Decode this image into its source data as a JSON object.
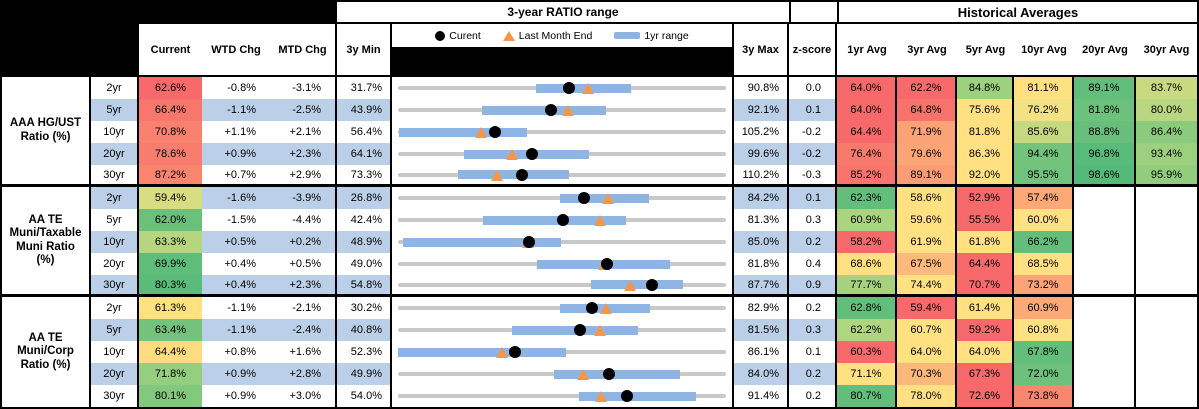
{
  "header": {
    "chart_range_title": "3-year RATIO range",
    "historical_title": "Historical Averages",
    "columns": {
      "current": "Current",
      "wtd": "WTD Chg",
      "mtd": "MTD Chg",
      "min": "3y Min",
      "max": "3y Max",
      "z": "z-score"
    },
    "avg_columns": [
      "1yr Avg",
      "3yr Avg",
      "5yr Avg",
      "10yr Avg",
      "20yr Avg",
      "30yr Avg"
    ],
    "legend": {
      "current": "Curent",
      "last_month_end": "Last Month End",
      "range": "1yr range"
    }
  },
  "colors": {
    "stripe": "#BBD0E8",
    "bar_1yr": "#8EB4E3",
    "track": "#C8C8C8",
    "triangle_orange": "#F79646",
    "dot_black": "#000000",
    "heat_red": "#F8696B",
    "heat_yellow": "#FFE182",
    "heat_green": "#63BE7B"
  },
  "chart_data": {
    "type": "table",
    "title": "3-year RATIO range",
    "legend": [
      "Curent",
      "Last Month End",
      "1yr range"
    ],
    "columns": [
      "Current",
      "WTD Chg",
      "MTD Chg",
      "3y Min",
      "3y Max",
      "z-score",
      "1yr Avg",
      "3yr Avg",
      "5yr Avg",
      "10yr Avg",
      "20yr Avg",
      "30yr Avg"
    ],
    "groups": [
      {
        "label": "AAA HG/UST Ratio (%)",
        "label_lines": "AAA HG/UST\nRatio (%)",
        "rows": [
          {
            "tenor": "2yr",
            "current": 62.6,
            "current_bg": "#F8696B",
            "wtd": "-0.8%",
            "mtd": "-3.1%",
            "min": 31.7,
            "max": 90.8,
            "z": "0.0",
            "range_1yr": [
              56.5,
              73.6
            ],
            "last_month_end": 65.9,
            "avgs": [
              {
                "v": 64.0,
                "bg": "#F8696B"
              },
              {
                "v": 62.2,
                "bg": "#F8696B"
              },
              {
                "v": 84.8,
                "bg": "#9ED17E"
              },
              {
                "v": 81.1,
                "bg": "#FFE182"
              },
              {
                "v": 89.1,
                "bg": "#63BE7B"
              },
              {
                "v": 83.7,
                "bg": "#C8DA80"
              }
            ]
          },
          {
            "tenor": "5yr",
            "current": 66.4,
            "current_bg": "#F8776D",
            "wtd": "-1.1%",
            "mtd": "-2.5%",
            "min": 43.9,
            "max": 92.1,
            "z": "0.1",
            "range_1yr": [
              56.3,
              74.4
            ],
            "last_month_end": 68.9,
            "avgs": [
              {
                "v": 64.0,
                "bg": "#F8696B"
              },
              {
                "v": 64.8,
                "bg": "#F8726C"
              },
              {
                "v": 75.6,
                "bg": "#FFE182"
              },
              {
                "v": 76.2,
                "bg": "#F2E284"
              },
              {
                "v": 81.8,
                "bg": "#6CC17C"
              },
              {
                "v": 80.0,
                "bg": "#B9D680"
              }
            ]
          },
          {
            "tenor": "10yr",
            "current": 70.8,
            "current_bg": "#F9816F",
            "wtd": "+1.1%",
            "mtd": "+2.1%",
            "min": 56.4,
            "max": 105.2,
            "z": "-0.2",
            "range_1yr": [
              56.5,
              75.6
            ],
            "last_month_end": 68.8,
            "avgs": [
              {
                "v": 64.4,
                "bg": "#F8696B"
              },
              {
                "v": 71.9,
                "bg": "#FBA376"
              },
              {
                "v": 81.8,
                "bg": "#FFE182"
              },
              {
                "v": 85.6,
                "bg": "#C6D981"
              },
              {
                "v": 88.8,
                "bg": "#68BF7B"
              },
              {
                "v": 86.4,
                "bg": "#8CCB7D"
              }
            ]
          },
          {
            "tenor": "20yr",
            "current": 78.6,
            "current_bg": "#F87D6E",
            "wtd": "+0.9%",
            "mtd": "+2.3%",
            "min": 64.1,
            "max": 99.6,
            "z": "-0.2",
            "range_1yr": [
              71.2,
              84.8
            ],
            "last_month_end": 76.4,
            "avgs": [
              {
                "v": 76.4,
                "bg": "#F87A6D"
              },
              {
                "v": 79.6,
                "bg": "#FBA476"
              },
              {
                "v": 86.3,
                "bg": "#FFE182"
              },
              {
                "v": 94.4,
                "bg": "#74C37C"
              },
              {
                "v": 96.8,
                "bg": "#58BB79"
              },
              {
                "v": 93.4,
                "bg": "#9DD07E"
              }
            ]
          },
          {
            "tenor": "30yr",
            "current": 87.2,
            "current_bg": "#F9856F",
            "wtd": "+0.7%",
            "mtd": "+2.9%",
            "min": 73.3,
            "max": 110.2,
            "z": "-0.3",
            "range_1yr": [
              80.0,
              92.5
            ],
            "last_month_end": 84.4,
            "avgs": [
              {
                "v": 85.2,
                "bg": "#F8746C"
              },
              {
                "v": 89.1,
                "bg": "#FB9D74"
              },
              {
                "v": 92.0,
                "bg": "#FFE182"
              },
              {
                "v": 95.5,
                "bg": "#70C27C"
              },
              {
                "v": 98.6,
                "bg": "#54BA79"
              },
              {
                "v": 95.9,
                "bg": "#92CD7E"
              }
            ]
          }
        ]
      },
      {
        "label": "AA TE Muni/Taxable Muni Ratio (%)",
        "label_lines": "AA TE\nMuni/Taxable\nMuni Ratio\n(%)",
        "rows": [
          {
            "tenor": "2yr",
            "current": 59.4,
            "current_bg": "#D9DD81",
            "wtd": "-1.6%",
            "mtd": "-3.9%",
            "min": 26.8,
            "max": 84.2,
            "z": "0.1",
            "range_1yr": [
              55.2,
              70.7
            ],
            "last_month_end": 63.5,
            "avgs": [
              {
                "v": 62.3,
                "bg": "#63BE7B"
              },
              {
                "v": 58.6,
                "bg": "#FFE182"
              },
              {
                "v": 52.9,
                "bg": "#F8696B"
              },
              {
                "v": 57.4,
                "bg": "#FCA977"
              },
              null,
              null
            ]
          },
          {
            "tenor": "5yr",
            "current": 62.0,
            "current_bg": "#6BC07C",
            "wtd": "-1.5%",
            "mtd": "-4.4%",
            "min": 42.4,
            "max": 81.3,
            "z": "0.3",
            "range_1yr": [
              52.5,
              69.5
            ],
            "last_month_end": 66.3,
            "avgs": [
              {
                "v": 60.9,
                "bg": "#ABD47F"
              },
              {
                "v": 59.6,
                "bg": "#FFE182"
              },
              {
                "v": 55.5,
                "bg": "#F8696B"
              },
              {
                "v": 60.0,
                "bg": "#FFE182"
              },
              null,
              null
            ]
          },
          {
            "tenor": "10yr",
            "current": 63.3,
            "current_bg": "#B5D67F",
            "wtd": "+0.5%",
            "mtd": "+0.2%",
            "min": 48.9,
            "max": 85.0,
            "z": "0.2",
            "range_1yr": [
              49.5,
              66.8
            ],
            "last_month_end": 63.2,
            "avgs": [
              {
                "v": 58.2,
                "bg": "#F8696B"
              },
              {
                "v": 61.9,
                "bg": "#FFE182"
              },
              {
                "v": 61.8,
                "bg": "#FFE182"
              },
              {
                "v": 66.2,
                "bg": "#63BE7B"
              },
              null,
              null
            ]
          },
          {
            "tenor": "20yr",
            "current": 69.9,
            "current_bg": "#5FBD7A",
            "wtd": "+0.4%",
            "mtd": "+0.5%",
            "min": 49.0,
            "max": 81.8,
            "z": "0.4",
            "range_1yr": [
              62.9,
              76.2
            ],
            "last_month_end": 69.6,
            "avgs": [
              {
                "v": 68.6,
                "bg": "#FFE182"
              },
              {
                "v": 67.5,
                "bg": "#FDBA7C"
              },
              {
                "v": 64.4,
                "bg": "#F8696B"
              },
              {
                "v": 68.5,
                "bg": "#FFE082"
              },
              null,
              null
            ]
          },
          {
            "tenor": "30yr",
            "current": 80.3,
            "current_bg": "#5ABB7A",
            "wtd": "+0.4%",
            "mtd": "+2.3%",
            "min": 54.8,
            "max": 87.7,
            "z": "0.9",
            "range_1yr": [
              74.2,
              83.4
            ],
            "last_month_end": 78.1,
            "avgs": [
              {
                "v": 77.7,
                "bg": "#A6D27F"
              },
              {
                "v": 74.4,
                "bg": "#FFE182"
              },
              {
                "v": 70.7,
                "bg": "#F8696B"
              },
              {
                "v": 73.2,
                "bg": "#FCA476"
              },
              null,
              null
            ]
          }
        ]
      },
      {
        "label": "AA TE Muni/Corp Ratio (%)",
        "label_lines": "AA TE\nMuni/Corp\nRatio (%)",
        "rows": [
          {
            "tenor": "2yr",
            "current": 61.3,
            "current_bg": "#FFE182",
            "wtd": "-1.1%",
            "mtd": "-2.1%",
            "min": 30.2,
            "max": 82.9,
            "z": "0.2",
            "range_1yr": [
              56.3,
              70.7
            ],
            "last_month_end": 63.6,
            "avgs": [
              {
                "v": 62.8,
                "bg": "#63BE7B"
              },
              {
                "v": 59.4,
                "bg": "#F8696B"
              },
              {
                "v": 61.4,
                "bg": "#FFE182"
              },
              {
                "v": 60.9,
                "bg": "#FBAA77"
              },
              null,
              null
            ]
          },
          {
            "tenor": "5yr",
            "current": 63.4,
            "current_bg": "#73C37C",
            "wtd": "-1.1%",
            "mtd": "-2.4%",
            "min": 40.8,
            "max": 81.5,
            "z": "0.3",
            "range_1yr": [
              54.9,
              70.6
            ],
            "last_month_end": 65.9,
            "avgs": [
              {
                "v": 62.2,
                "bg": "#B0D580"
              },
              {
                "v": 60.7,
                "bg": "#FFE182"
              },
              {
                "v": 59.2,
                "bg": "#F8696B"
              },
              {
                "v": 60.8,
                "bg": "#FFE082"
              },
              null,
              null
            ]
          },
          {
            "tenor": "10yr",
            "current": 64.4,
            "current_bg": "#FDDC80",
            "wtd": "+0.8%",
            "mtd": "+1.6%",
            "min": 52.3,
            "max": 86.1,
            "z": "0.1",
            "range_1yr": [
              52.3,
              69.6
            ],
            "last_month_end": 63.0,
            "avgs": [
              {
                "v": 60.3,
                "bg": "#F8696B"
              },
              {
                "v": 64.0,
                "bg": "#FFE182"
              },
              {
                "v": 64.0,
                "bg": "#FFE182"
              },
              {
                "v": 67.8,
                "bg": "#63BE7B"
              },
              null,
              null
            ]
          },
          {
            "tenor": "20yr",
            "current": 71.8,
            "current_bg": "#94CE7E",
            "wtd": "+0.9%",
            "mtd": "+2.8%",
            "min": 49.9,
            "max": 84.0,
            "z": "0.2",
            "range_1yr": [
              66.1,
              79.2
            ],
            "last_month_end": 69.1,
            "avgs": [
              {
                "v": 71.1,
                "bg": "#FFE182"
              },
              {
                "v": 70.3,
                "bg": "#FCB77B"
              },
              {
                "v": 67.3,
                "bg": "#F8696B"
              },
              {
                "v": 72.0,
                "bg": "#6DC17C"
              },
              null,
              null
            ]
          },
          {
            "tenor": "30yr",
            "current": 80.1,
            "current_bg": "#83C97D",
            "wtd": "+0.9%",
            "mtd": "+3.0%",
            "min": 54.0,
            "max": 91.4,
            "z": "0.2",
            "range_1yr": [
              74.6,
              88.0
            ],
            "last_month_end": 77.2,
            "avgs": [
              {
                "v": 80.7,
                "bg": "#63BE7B"
              },
              {
                "v": 78.0,
                "bg": "#FFE182"
              },
              {
                "v": 72.6,
                "bg": "#F8696B"
              },
              {
                "v": 73.8,
                "bg": "#F9866F"
              },
              null,
              null
            ]
          }
        ]
      }
    ]
  }
}
